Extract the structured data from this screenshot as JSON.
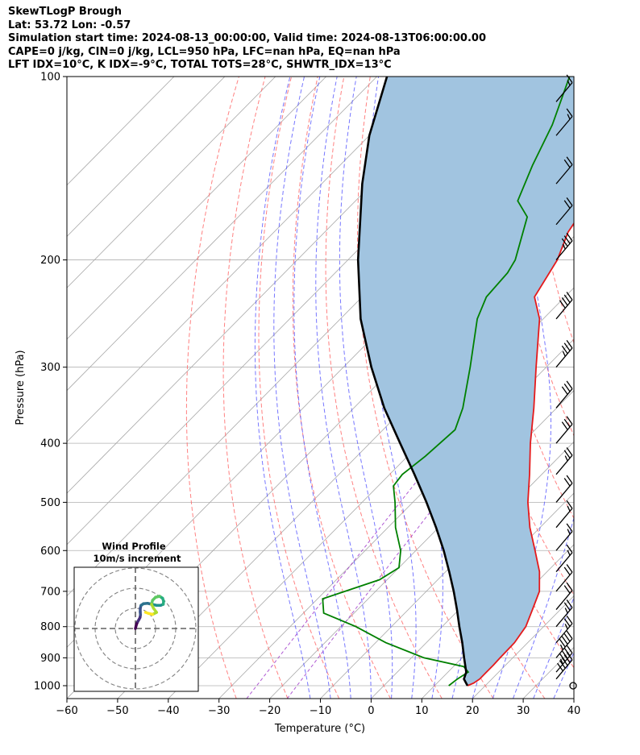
{
  "header": {
    "line1": "SkewTLogP Brough",
    "line2": "Lat: 53.72   Lon: -0.57",
    "line3": "Simulation start time: 2024-08-13_00:00:00, Valid time: 2024-08-13T06:00:00.00",
    "line4": "CAPE=0 j/kg, CIN=0 j/kg, LCL=950 hPa, LFC=nan hPa, EQ=nan hPa",
    "line5": "LFT IDX=10°C, K IDX=-9°C, TOTAL TOTS=28°C, SHWTR_IDX=13°C"
  },
  "colors": {
    "temperature": "#e41a1c",
    "dewpoint": "#008000",
    "parcel": "#000000",
    "cape_fill": "#a1c4e0",
    "dry_adiabat": "#ff6b6b",
    "moist_adiabat": "#5555ff",
    "mixing_ratio": "#9b30c8",
    "isotherm": "#a8a8a8",
    "isobar": "#b0b0b0"
  },
  "chart_data": {
    "type": "line",
    "xlabel": "Temperature (°C)",
    "ylabel": "Pressure (hPa)",
    "xlim": [
      -60,
      40
    ],
    "ylim": [
      1050,
      100
    ],
    "y_scale": "log",
    "x_ticks": [
      -60,
      -50,
      -40,
      -30,
      -20,
      -10,
      0,
      10,
      20,
      30,
      40
    ],
    "y_ticks": [
      1000,
      900,
      800,
      700,
      600,
      500,
      400,
      300,
      200,
      100
    ],
    "grid": true,
    "series": [
      {
        "key": "temperature",
        "pressure": [
          1000,
          990,
          975,
          950,
          925,
          900,
          850,
          800,
          750,
          700,
          650,
          600,
          550,
          500,
          450,
          400,
          350,
          300,
          250,
          230,
          200,
          180,
          150,
          130,
          110,
          100
        ],
        "temp": [
          16.5,
          17.2,
          17.6,
          17.6,
          17.6,
          17.5,
          17.4,
          16.5,
          14.5,
          12.3,
          8.5,
          3.5,
          -2.0,
          -7.3,
          -12.4,
          -18.3,
          -24.5,
          -32.0,
          -40.7,
          -46.0,
          -48.7,
          -52.0,
          -55.0,
          -57.0,
          -58.0,
          -59.0
        ]
      },
      {
        "key": "dewpoint",
        "pressure": [
          1000,
          975,
          950,
          930,
          900,
          850,
          800,
          760,
          720,
          670,
          640,
          600,
          550,
          500,
          470,
          450,
          420,
          380,
          350,
          300,
          250,
          230,
          210,
          200,
          170,
          160,
          140,
          120,
          100
        ],
        "temp": [
          12.8,
          13.2,
          14.0,
          12.0,
          2.5,
          -8.0,
          -17.0,
          -26.0,
          -29.0,
          -21.5,
          -20.0,
          -23.0,
          -28.5,
          -33.5,
          -37.0,
          -37.5,
          -36.5,
          -35.8,
          -38.5,
          -45.0,
          -53.0,
          -55.5,
          -56.0,
          -57.0,
          -63.0,
          -68.0,
          -72.0,
          -76.0,
          -82.0
        ]
      },
      {
        "key": "parcel",
        "pressure": [
          1000,
          975,
          950,
          900,
          850,
          800,
          750,
          700,
          650,
          600,
          550,
          500,
          450,
          400,
          350,
          300,
          250,
          200,
          150,
          125,
          100
        ],
        "temp": [
          16.5,
          14.5,
          13.6,
          10.4,
          7.1,
          3.4,
          -0.4,
          -4.6,
          -9.3,
          -14.5,
          -20.5,
          -27.3,
          -35.1,
          -44.0,
          -54.0,
          -64.5,
          -76.0,
          -88.0,
          -102.0,
          -110.0,
          -118.0
        ]
      }
    ],
    "shaded_region": "between temperature and parcel"
  },
  "inset": {
    "title1": "Wind Profile",
    "title2": "10m/s increment",
    "hodograph": {
      "u": [
        0,
        0.3,
        0.7,
        1.2,
        1.8,
        2.3,
        2.5,
        2.4,
        2.4,
        2.8,
        4.0,
        6.0,
        8.2,
        10.5,
        12.5,
        13.8,
        14.0,
        13.5,
        12.0,
        10.0,
        8.5,
        8.0,
        9.0,
        10.5,
        8.5,
        6.5,
        5.0
      ],
      "v": [
        0,
        1.2,
        2.5,
        3.5,
        4.5,
        5.5,
        6.8,
        8.2,
        10.0,
        11.5,
        12.3,
        12.5,
        12.0,
        11.5,
        11.5,
        12.0,
        13.5,
        15.0,
        16.0,
        15.5,
        14.0,
        12.0,
        10.0,
        8.0,
        7.0,
        7.5,
        8.0
      ]
    }
  },
  "barbs": [
    {
      "p": 1000,
      "speed": 0
    },
    {
      "p": 975,
      "speed": 50
    },
    {
      "p": 950,
      "speed": 45
    },
    {
      "p": 900,
      "speed": 45
    },
    {
      "p": 850,
      "speed": 25
    },
    {
      "p": 800,
      "speed": 25
    },
    {
      "p": 750,
      "speed": 20
    },
    {
      "p": 700,
      "speed": 20
    },
    {
      "p": 650,
      "speed": 15
    },
    {
      "p": 600,
      "speed": 15
    },
    {
      "p": 550,
      "speed": 15
    },
    {
      "p": 500,
      "speed": 20
    },
    {
      "p": 450,
      "speed": 25
    },
    {
      "p": 400,
      "speed": 30
    },
    {
      "p": 350,
      "speed": 30
    },
    {
      "p": 300,
      "speed": 35
    },
    {
      "p": 250,
      "speed": 40
    },
    {
      "p": 200,
      "speed": 35
    },
    {
      "p": 175,
      "speed": 20
    },
    {
      "p": 150,
      "speed": 20
    },
    {
      "p": 125,
      "speed": 15
    },
    {
      "p": 110,
      "speed": 15
    }
  ]
}
